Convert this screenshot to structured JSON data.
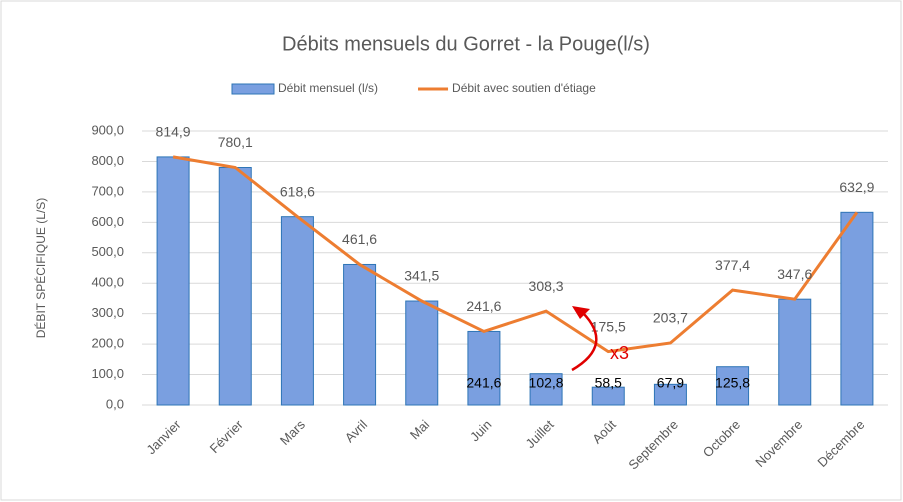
{
  "chart_data": {
    "type": "bar-line",
    "title": "Débits mensuels du Gorret - la Pouge(l/s)",
    "y_label": "DÉBIT SPÉCIFIQUE (L/S)",
    "categories": [
      "Janvier",
      "Février",
      "Mars",
      "Avril",
      "Mai",
      "Juin",
      "Juillet",
      "Août",
      "Septembre",
      "Octobre",
      "Novembre",
      "Décembre"
    ],
    "series": [
      {
        "name": "Débit mensuel (l/s)",
        "kind": "bar",
        "color": "#7a9fe0",
        "values": [
          814.9,
          780.1,
          618.6,
          461.6,
          341.5,
          241.6,
          102.8,
          58.5,
          67.9,
          125.8,
          347.6,
          632.9
        ],
        "value_labels": [
          null,
          null,
          null,
          null,
          null,
          "241,6",
          "102,8",
          "58,5",
          "67,9",
          "125,8",
          null,
          null
        ]
      },
      {
        "name": "Débit avec soutien d'étiage",
        "kind": "line",
        "color": "#ed7d31",
        "values": [
          814.9,
          780.1,
          618.6,
          461.6,
          341.5,
          241.6,
          308.3,
          175.5,
          203.7,
          377.4,
          347.6,
          632.9
        ],
        "value_labels": [
          "814,9",
          "780,1",
          "618,6",
          "461,6",
          "341,5",
          "241,6",
          "308,3",
          "175,5",
          "203,7",
          "377,4",
          "347,6",
          "632,9"
        ]
      }
    ],
    "ylim": [
      0,
      900
    ],
    "yticks": [
      {
        "value": 0,
        "label": "0,0"
      },
      {
        "value": 100,
        "label": "100,0"
      },
      {
        "value": 200,
        "label": "200,0"
      },
      {
        "value": 300,
        "label": "300,0"
      },
      {
        "value": 400,
        "label": "400,0"
      },
      {
        "value": 500,
        "label": "500,0"
      },
      {
        "value": 600,
        "label": "600,0"
      },
      {
        "value": 700,
        "label": "700,0"
      },
      {
        "value": 800,
        "label": "800,0"
      },
      {
        "value": 900,
        "label": "900,0"
      }
    ],
    "grid": true,
    "legend": "top",
    "annotation": "x3"
  }
}
